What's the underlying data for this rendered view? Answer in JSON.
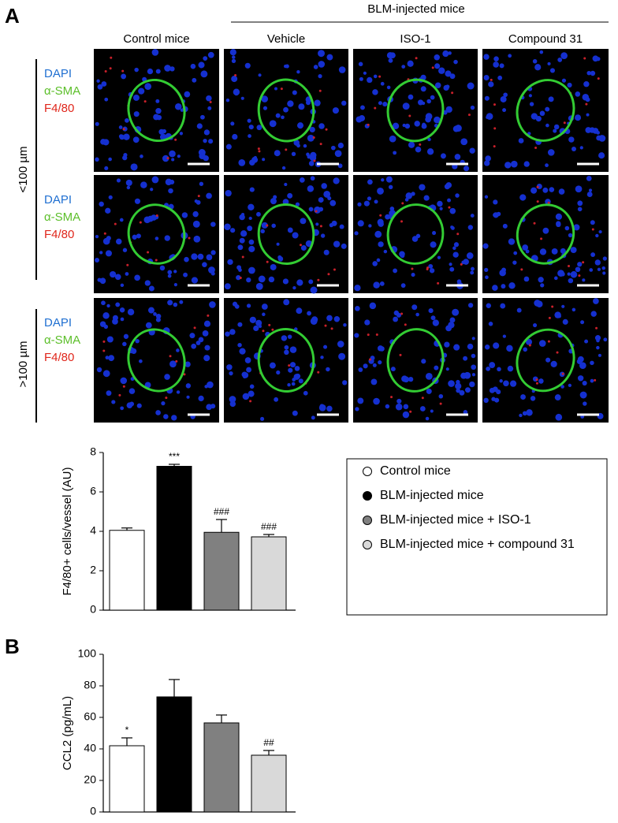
{
  "panel_a": {
    "label": "A",
    "group_header": "BLM-injected mice",
    "columns": [
      "Control mice",
      "Vehicle",
      "ISO-1",
      "Compound 31"
    ],
    "size_labels": [
      "<100 µm",
      ">100 µm"
    ],
    "stains": [
      "DAPI",
      "α-SMA",
      "F4/80"
    ]
  },
  "panel_b": {
    "label": "B"
  },
  "chart_data": [
    {
      "type": "bar",
      "ylabel": "F4/80+ cells/vessel (AU)",
      "values": [
        4.05,
        7.3,
        3.95,
        3.72
      ],
      "errors": [
        0.12,
        0.1,
        0.65,
        0.12
      ],
      "annotations": [
        null,
        "***",
        "###",
        "###"
      ],
      "colors": [
        "#ffffff",
        "#000000",
        "#808080",
        "#d9d9d9"
      ],
      "legend": [
        "Control mice",
        "BLM-injected mice",
        "BLM-injected mice + ISO-1",
        "BLM-injected mice + compound 31"
      ],
      "ylim": [
        0,
        8
      ],
      "yticks": [
        0,
        2,
        4,
        6,
        8
      ]
    },
    {
      "type": "bar",
      "ylabel": "CCL2 (pg/mL)",
      "values": [
        42,
        73,
        56.5,
        36
      ],
      "errors": [
        5,
        11,
        5,
        3
      ],
      "annotations": [
        "*",
        null,
        null,
        "##"
      ],
      "colors": [
        "#ffffff",
        "#000000",
        "#808080",
        "#d9d9d9"
      ],
      "ylim": [
        0,
        100
      ],
      "yticks": [
        0,
        20,
        40,
        60,
        80,
        100
      ]
    }
  ]
}
